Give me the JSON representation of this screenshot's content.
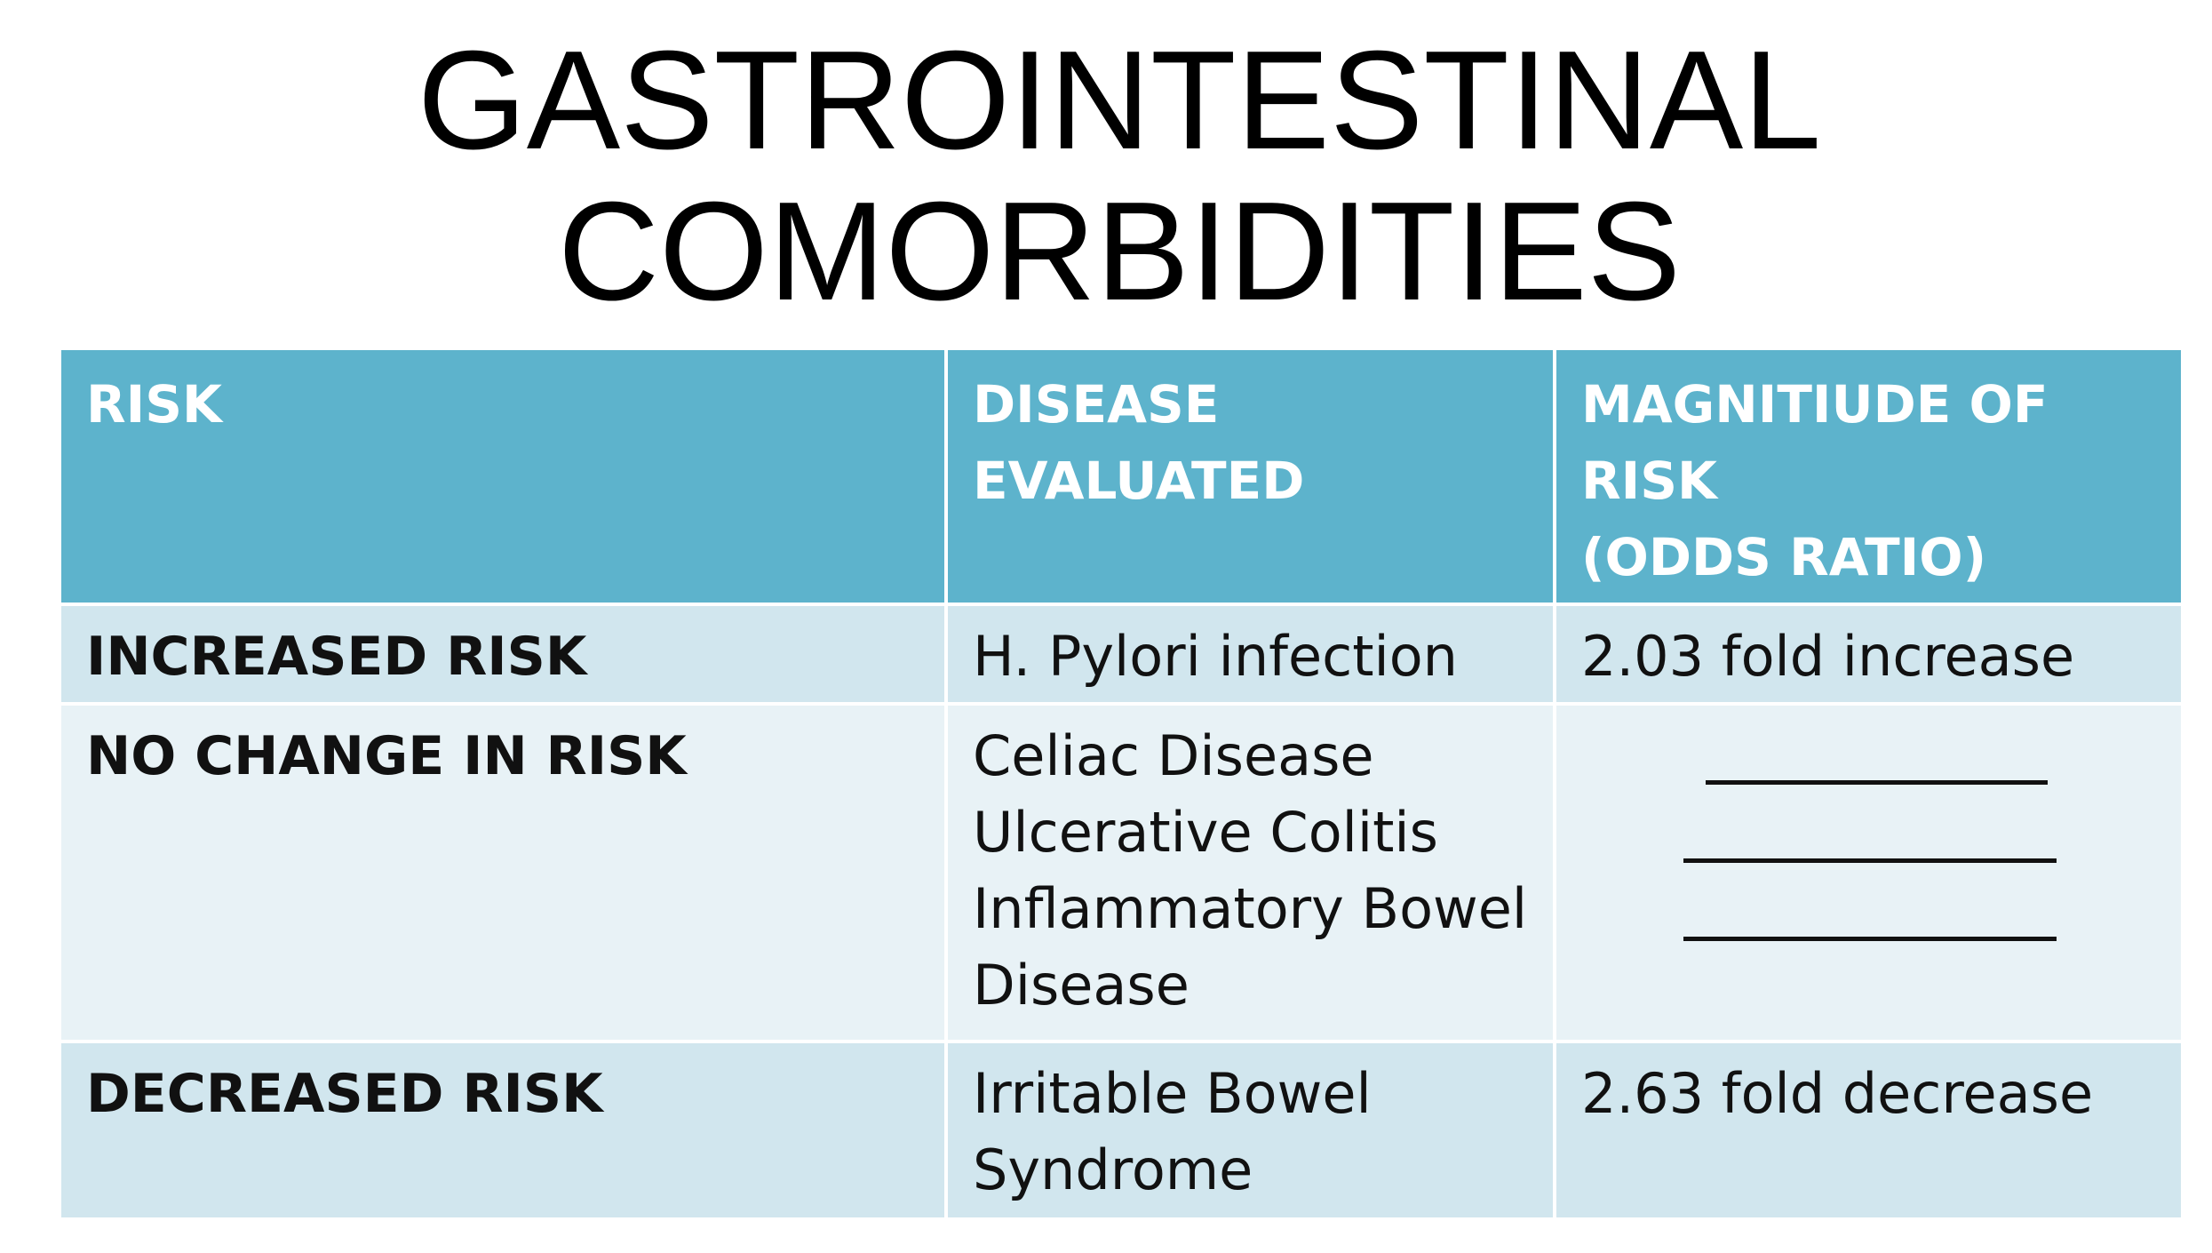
{
  "slide": {
    "title_lines": [
      "GASTROINTESTINAL",
      "COMORBIDITIES"
    ]
  },
  "table": {
    "headers": [
      {
        "lines": [
          "RISK"
        ]
      },
      {
        "lines": [
          "DISEASE",
          "EVALUATED"
        ]
      },
      {
        "lines": [
          "MAGNITIUDE OF",
          "RISK",
          "(ODDS RATIO)"
        ]
      }
    ],
    "rows": [
      {
        "risk": "INCREASED RISK",
        "disease_lines": [
          "H.  Pylori infection"
        ],
        "magnitude": "2.03 fold increase"
      },
      {
        "risk": "NO  CHANGE IN  RISK",
        "disease_lines": [
          "Celiac Disease",
          "Ulcerative Colitis",
          "Inflammatory  Bowel",
          "Disease"
        ],
        "magnitude": ""
      },
      {
        "risk": "DECREASED RISK",
        "disease_lines": [
          "Irritable Bowel",
          "Syndrome"
        ],
        "magnitude": "2.63 fold decrease"
      }
    ]
  },
  "colors": {
    "header_bg": "#5db3cc",
    "row_dark_bg": "#d1e6ee",
    "row_light_bg": "#e8f2f6",
    "header_text": "#ffffff",
    "body_text": "#111111"
  }
}
